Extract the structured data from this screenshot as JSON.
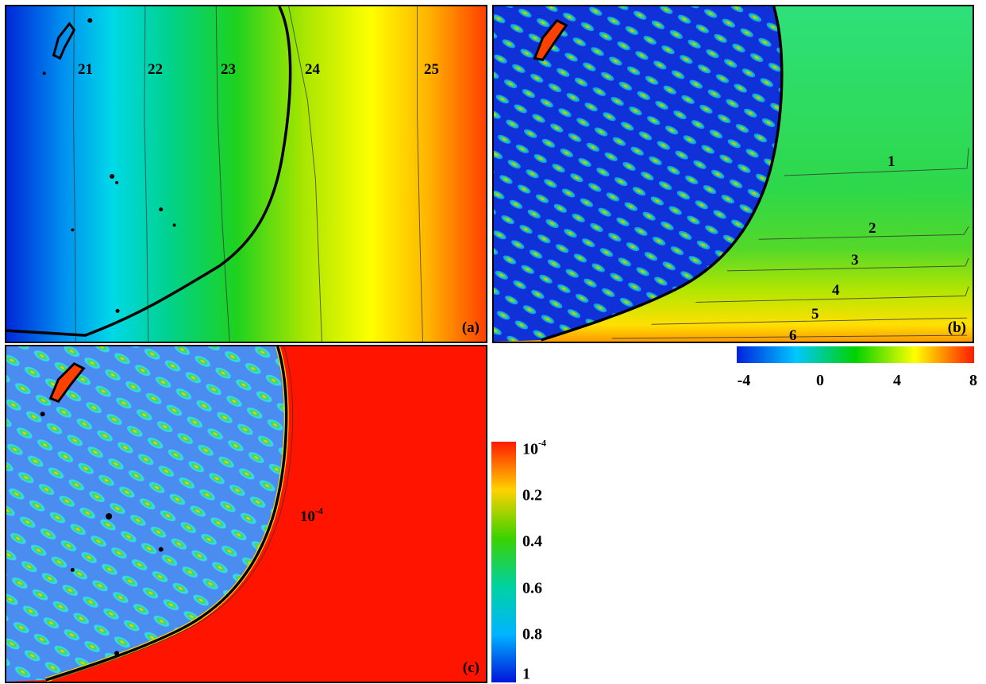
{
  "panels": {
    "a": {
      "label": "(a)",
      "contour_labels": [
        "21",
        "22",
        "23",
        "24",
        "25"
      ]
    },
    "b": {
      "label": "(b)",
      "contour_labels": [
        "1",
        "2",
        "3",
        "4",
        "5",
        "6"
      ]
    },
    "c": {
      "label": "(c)",
      "annotation_base": "10",
      "annotation_exp": "-4"
    }
  },
  "colorbar_horizontal": {
    "ticks": [
      "-4",
      "0",
      "4",
      "8"
    ],
    "colors": [
      "#0022dd",
      "#00c8ff",
      "#00d200",
      "#ffff00",
      "#ff1a00"
    ]
  },
  "colorbar_vertical": {
    "top_base": "10",
    "top_exp": "-4",
    "ticks": [
      "0.2",
      "0.4",
      "0.6",
      "0.8",
      "1"
    ],
    "colors": [
      "#ff1a00",
      "#ffd200",
      "#3cd200",
      "#00d2a0",
      "#00b4ff",
      "#0014dc"
    ]
  }
}
